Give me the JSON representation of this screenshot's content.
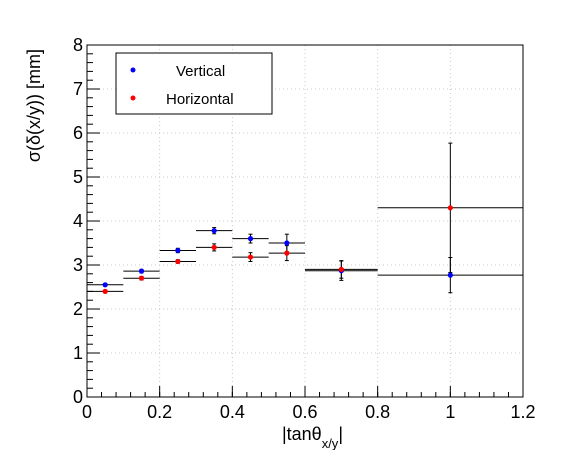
{
  "chart_data": {
    "type": "scatter",
    "xlabel": "|tanθ",
    "xlabel_sub": "x/y",
    "xlabel_end": "|",
    "ylabel": "σ(δ(x/y)) [mm]",
    "xlim": [
      0,
      1.2
    ],
    "ylim": [
      0,
      8
    ],
    "xticks": [
      "0",
      "0.2",
      "0.4",
      "0.6",
      "0.8",
      "1",
      "1.2"
    ],
    "yticks": [
      "0",
      "1",
      "2",
      "3",
      "4",
      "5",
      "6",
      "7",
      "8"
    ],
    "grid": true,
    "legend_position": "top-left",
    "series": [
      {
        "name": "Vertical",
        "color": "#0000ff",
        "points": [
          {
            "x": 0.05,
            "y": 2.55,
            "xerr": 0.05,
            "yerr": 0.03
          },
          {
            "x": 0.15,
            "y": 2.86,
            "xerr": 0.05,
            "yerr": 0.04
          },
          {
            "x": 0.25,
            "y": 3.33,
            "xerr": 0.05,
            "yerr": 0.05
          },
          {
            "x": 0.35,
            "y": 3.78,
            "xerr": 0.05,
            "yerr": 0.07
          },
          {
            "x": 0.45,
            "y": 3.6,
            "xerr": 0.05,
            "yerr": 0.1
          },
          {
            "x": 0.55,
            "y": 3.5,
            "xerr": 0.05,
            "yerr": 0.2
          },
          {
            "x": 0.7,
            "y": 2.87,
            "xerr": 0.1,
            "yerr": 0.22
          },
          {
            "x": 1.0,
            "y": 2.77,
            "xerr": 0.2,
            "yerr": 0.4
          }
        ]
      },
      {
        "name": "Horizontal",
        "color": "#ff0000",
        "points": [
          {
            "x": 0.05,
            "y": 2.4,
            "xerr": 0.05,
            "yerr": 0.03
          },
          {
            "x": 0.15,
            "y": 2.7,
            "xerr": 0.05,
            "yerr": 0.04
          },
          {
            "x": 0.25,
            "y": 3.08,
            "xerr": 0.05,
            "yerr": 0.04
          },
          {
            "x": 0.35,
            "y": 3.4,
            "xerr": 0.05,
            "yerr": 0.08
          },
          {
            "x": 0.45,
            "y": 3.18,
            "xerr": 0.05,
            "yerr": 0.1
          },
          {
            "x": 0.55,
            "y": 3.27,
            "xerr": 0.05,
            "yerr": 0.17
          },
          {
            "x": 0.7,
            "y": 2.9,
            "xerr": 0.1,
            "yerr": 0.2
          },
          {
            "x": 1.0,
            "y": 4.3,
            "xerr": 0.2,
            "yerr": 1.47
          }
        ]
      }
    ]
  }
}
